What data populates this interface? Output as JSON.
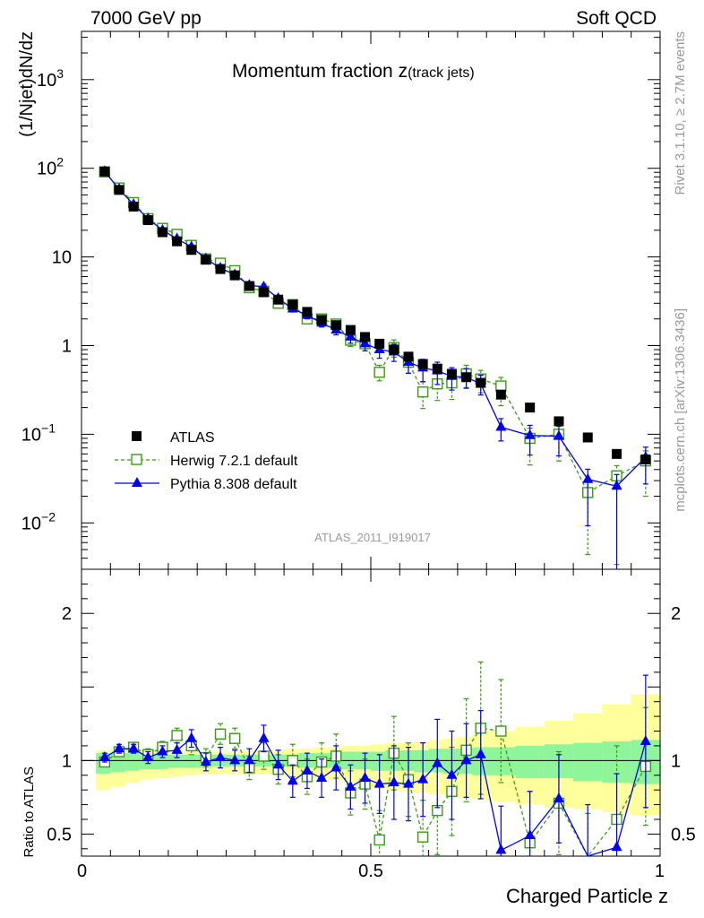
{
  "header": {
    "left": "7000 GeV pp",
    "right": "Soft QCD"
  },
  "side": {
    "rivet": "Rivet 3.1.10, ≥ 2.7M events",
    "mcplots": "mcplots.cern.ch [arXiv:1306.3436]"
  },
  "chart_data": {
    "type": "scatter",
    "title_main": "Momentum fraction ",
    "title_z": "z",
    "title_sub": "(track jets)",
    "ylabel": "(1/Njet)dN/dz",
    "xlabel": "Charged Particle z",
    "analysis_id": "ATLAS_2011_I919017",
    "xlim": [
      0,
      1
    ],
    "ylim": [
      0.003,
      3500
    ],
    "yscale": "log",
    "ratio_ylabel": "Ratio to ATLAS",
    "ratio_ylim": [
      0.35,
      2.3
    ],
    "x_ticks": [
      "0",
      "0.5",
      "1"
    ],
    "y_ticks_main": [
      {
        "v": 0.01,
        "b": "10",
        "e": "−2"
      },
      {
        "v": 0.1,
        "b": "10",
        "e": "−1"
      },
      {
        "v": 1,
        "b": "1",
        "e": ""
      },
      {
        "v": 10,
        "b": "10",
        "e": ""
      },
      {
        "v": 100,
        "b": "10",
        "e": "2"
      },
      {
        "v": 1000,
        "b": "10",
        "e": "3"
      }
    ],
    "y_ticks_ratio": [
      "0.5",
      "1",
      "2"
    ],
    "legend_position": "bottom-left",
    "x": [
      0.04,
      0.065,
      0.09,
      0.115,
      0.14,
      0.165,
      0.19,
      0.215,
      0.24,
      0.265,
      0.29,
      0.315,
      0.34,
      0.365,
      0.39,
      0.415,
      0.44,
      0.465,
      0.49,
      0.515,
      0.54,
      0.565,
      0.59,
      0.615,
      0.64,
      0.665,
      0.69,
      0.725,
      0.775,
      0.825,
      0.875,
      0.925,
      0.975
    ],
    "series": [
      {
        "name": "ATLAS",
        "color": "#000000",
        "marker": "square-filled",
        "values": [
          92,
          57,
          37,
          26,
          19,
          15,
          12,
          9.3,
          7.3,
          6.2,
          4.7,
          4.0,
          3.3,
          2.9,
          2.4,
          1.95,
          1.7,
          1.5,
          1.25,
          1.05,
          0.9,
          0.75,
          0.62,
          0.55,
          0.48,
          0.44,
          0.38,
          0.28,
          0.2,
          0.14,
          0.092,
          0.06,
          0.052
        ]
      },
      {
        "name": "Herwig 7.2.1 default",
        "color": "#3a9a14",
        "marker": "square-open",
        "line": "dashed",
        "values": [
          91,
          60,
          41,
          27,
          21,
          18,
          13.5,
          9.5,
          8.5,
          7.0,
          4.5,
          4.1,
          3.0,
          2.9,
          2.0,
          2.0,
          1.75,
          1.15,
          1.05,
          0.5,
          0.95,
          0.65,
          0.3,
          0.37,
          0.38,
          0.48,
          0.42,
          0.35,
          0.09,
          0.1,
          0.022,
          0.034,
          0.05
        ],
        "err_lo": [
          0.05,
          0.05,
          0.05,
          0.05,
          0.05,
          0.05,
          0.05,
          0.05,
          0.05,
          0.05,
          0.07,
          0.07,
          0.07,
          0.08,
          0.09,
          0.1,
          0.12,
          0.15,
          0.17,
          0.2,
          0.22,
          0.25,
          0.35,
          0.35,
          0.35,
          0.3,
          0.3,
          0.4,
          0.5,
          0.5,
          0.8,
          0.9,
          0.6
        ],
        "err_hi": [
          0.05,
          0.05,
          0.05,
          0.05,
          0.05,
          0.05,
          0.05,
          0.05,
          0.05,
          0.05,
          0.07,
          0.07,
          0.07,
          0.08,
          0.09,
          0.1,
          0.12,
          0.15,
          0.17,
          0.2,
          0.22,
          0.25,
          0.3,
          0.3,
          0.3,
          0.25,
          0.25,
          0.25,
          0.3,
          0.3,
          0.4,
          0.3,
          0.3
        ],
        "ratio": [
          0.99,
          1.06,
          1.09,
          1.04,
          1.09,
          1.17,
          1.1,
          1.02,
          1.18,
          1.15,
          0.95,
          1.03,
          0.94,
          1.0,
          0.89,
          0.99,
          1.03,
          0.78,
          0.84,
          0.46,
          1.05,
          0.87,
          0.48,
          0.66,
          0.79,
          1.07,
          1.22,
          1.2,
          0.44,
          0.71,
          0.24,
          0.6,
          0.96
        ],
        "ratio_err": [
          0.03,
          0.03,
          0.03,
          0.04,
          0.04,
          0.05,
          0.06,
          0.06,
          0.07,
          0.07,
          0.08,
          0.09,
          0.1,
          0.11,
          0.12,
          0.13,
          0.15,
          0.15,
          0.17,
          0.2,
          0.25,
          0.25,
          0.25,
          0.3,
          0.3,
          0.35,
          0.45,
          0.35,
          0.35,
          0.35,
          0.4,
          0.5,
          0.4
        ]
      },
      {
        "name": "Pythia 8.308 default",
        "color": "#0000ee",
        "marker": "triangle-filled",
        "line": "solid",
        "values": [
          92,
          58,
          39,
          27,
          20,
          16,
          13,
          9.5,
          7.5,
          6.3,
          4.8,
          4.6,
          3.4,
          2.6,
          2.2,
          1.8,
          1.5,
          1.25,
          1.05,
          0.9,
          0.85,
          0.65,
          0.56,
          0.52,
          0.45,
          0.44,
          0.37,
          0.12,
          0.097,
          0.095,
          0.031,
          0.026,
          0.055
        ],
        "err_lo": [
          0.05,
          0.05,
          0.05,
          0.05,
          0.05,
          0.05,
          0.05,
          0.05,
          0.05,
          0.05,
          0.07,
          0.07,
          0.07,
          0.08,
          0.09,
          0.1,
          0.12,
          0.15,
          0.17,
          0.2,
          0.22,
          0.25,
          0.3,
          0.3,
          0.3,
          0.25,
          0.25,
          0.3,
          0.4,
          0.4,
          0.7,
          0.9,
          0.5
        ],
        "err_hi": [
          0.05,
          0.05,
          0.05,
          0.05,
          0.05,
          0.05,
          0.05,
          0.05,
          0.05,
          0.05,
          0.07,
          0.07,
          0.07,
          0.08,
          0.09,
          0.1,
          0.12,
          0.15,
          0.17,
          0.2,
          0.22,
          0.25,
          0.25,
          0.25,
          0.25,
          0.25,
          0.25,
          0.25,
          0.3,
          0.3,
          0.3,
          0.35,
          0.3
        ],
        "ratio": [
          1.02,
          1.08,
          1.08,
          1.02,
          1.06,
          1.07,
          1.15,
          0.99,
          1.02,
          1.0,
          1.0,
          1.15,
          0.97,
          0.86,
          0.93,
          0.88,
          0.95,
          0.82,
          0.88,
          0.84,
          0.85,
          0.84,
          0.87,
          0.98,
          0.9,
          1.0,
          1.04,
          0.39,
          0.49,
          0.74,
          0.3,
          0.41,
          1.13
        ],
        "ratio_err": [
          0.03,
          0.03,
          0.03,
          0.04,
          0.04,
          0.05,
          0.06,
          0.06,
          0.07,
          0.07,
          0.08,
          0.09,
          0.1,
          0.11,
          0.12,
          0.13,
          0.15,
          0.15,
          0.17,
          0.2,
          0.25,
          0.25,
          0.25,
          0.3,
          0.3,
          0.25,
          0.3,
          0.3,
          0.3,
          0.3,
          0.4,
          0.5,
          0.45
        ]
      }
    ],
    "bands": {
      "green_color": "#8ef59a",
      "yellow_color": "#ffff9c",
      "x_edges": [
        0.025,
        0.05,
        0.075,
        0.1,
        0.125,
        0.15,
        0.175,
        0.2,
        0.225,
        0.25,
        0.275,
        0.3,
        0.325,
        0.35,
        0.375,
        0.4,
        0.425,
        0.45,
        0.475,
        0.5,
        0.525,
        0.55,
        0.575,
        0.6,
        0.625,
        0.65,
        0.675,
        0.7,
        0.75,
        0.8,
        0.85,
        0.9,
        0.95,
        1.0
      ],
      "green_lo": [
        0.91,
        0.92,
        0.93,
        0.94,
        0.94,
        0.95,
        0.95,
        0.95,
        0.96,
        0.96,
        0.96,
        0.96,
        0.96,
        0.96,
        0.95,
        0.95,
        0.95,
        0.94,
        0.94,
        0.93,
        0.93,
        0.93,
        0.92,
        0.92,
        0.91,
        0.91,
        0.9,
        0.9,
        0.88,
        0.88,
        0.86,
        0.85,
        0.84
      ],
      "green_hi": [
        1.05,
        1.05,
        1.05,
        1.05,
        1.04,
        1.04,
        1.04,
        1.04,
        1.04,
        1.04,
        1.04,
        1.04,
        1.04,
        1.04,
        1.05,
        1.05,
        1.05,
        1.06,
        1.06,
        1.06,
        1.07,
        1.07,
        1.07,
        1.08,
        1.08,
        1.08,
        1.09,
        1.09,
        1.1,
        1.11,
        1.12,
        1.13,
        1.14
      ],
      "yellow_lo": [
        0.8,
        0.82,
        0.85,
        0.87,
        0.88,
        0.89,
        0.9,
        0.91,
        0.91,
        0.91,
        0.91,
        0.91,
        0.91,
        0.9,
        0.89,
        0.88,
        0.87,
        0.85,
        0.83,
        0.82,
        0.8,
        0.79,
        0.78,
        0.77,
        0.76,
        0.75,
        0.74,
        0.72,
        0.7,
        0.68,
        0.67,
        0.65,
        0.63
      ],
      "yellow_hi": [
        1.07,
        1.07,
        1.07,
        1.07,
        1.06,
        1.06,
        1.06,
        1.06,
        1.06,
        1.06,
        1.07,
        1.07,
        1.07,
        1.08,
        1.08,
        1.09,
        1.09,
        1.1,
        1.1,
        1.11,
        1.12,
        1.12,
        1.13,
        1.14,
        1.15,
        1.16,
        1.18,
        1.2,
        1.23,
        1.27,
        1.32,
        1.38,
        1.45
      ]
    }
  }
}
